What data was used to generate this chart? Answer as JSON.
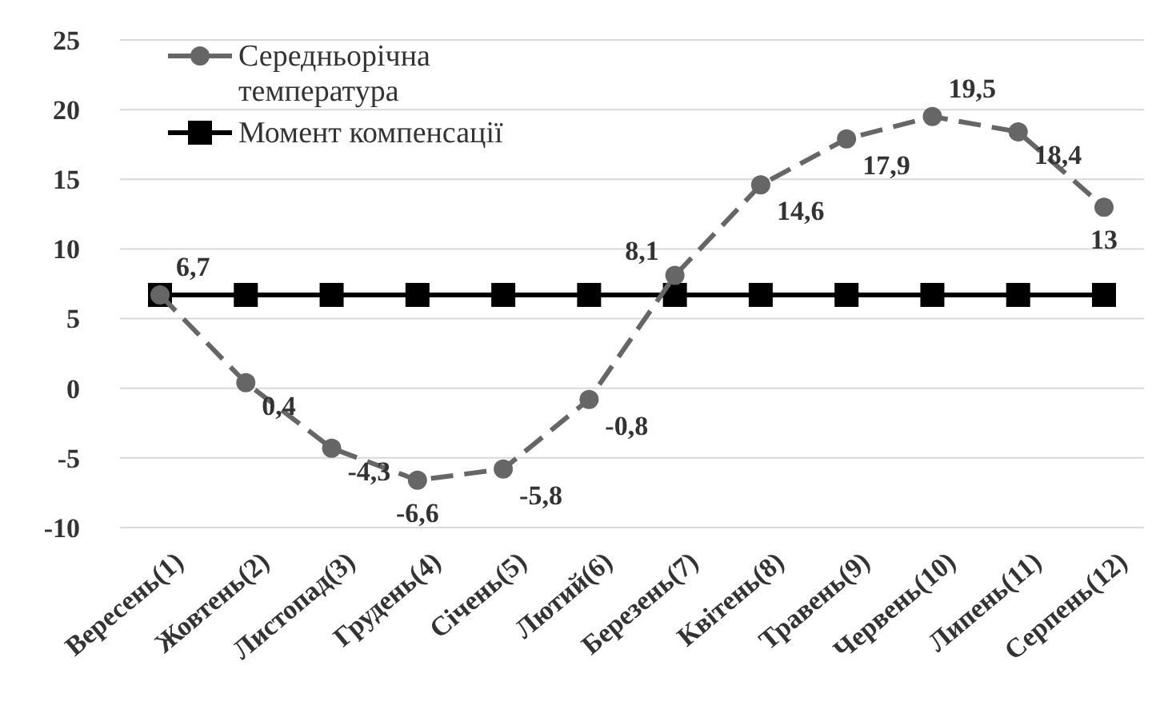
{
  "chart_data": {
    "type": "line",
    "categories": [
      "Вересень(1)",
      "Жовтень(2)",
      "Листопад(3)",
      "Грудень(4)",
      "Січень(5)",
      "Лютий(6)",
      "Березень(7)",
      "Квітень(8)",
      "Травень(9)",
      "Червень(10)",
      "Липень(11)",
      "Серпень(12)"
    ],
    "series": [
      {
        "name": "Середньорічна температура",
        "color": "#666666",
        "marker": "circle",
        "line_style": "dashed",
        "values": [
          6.7,
          0.4,
          -4.3,
          -6.6,
          -5.8,
          -0.8,
          8.1,
          14.6,
          17.9,
          19.5,
          18.4,
          13
        ],
        "value_labels": [
          "6,7",
          "0,4",
          "-4,3",
          "-6,6",
          "-5,8",
          "-0,8",
          "8,1",
          "14,6",
          "17,9",
          "19,5",
          "18,4",
          "13"
        ]
      },
      {
        "name": "Момент компенсації",
        "color": "#000000",
        "marker": "square",
        "line_style": "solid",
        "values": [
          6.7,
          6.7,
          6.7,
          6.7,
          6.7,
          6.7,
          6.7,
          6.7,
          6.7,
          6.7,
          6.7,
          6.7
        ]
      }
    ],
    "ylim": [
      -10,
      25
    ],
    "yticks": [
      -10,
      -5,
      0,
      5,
      10,
      15,
      20,
      25
    ],
    "grid": "y",
    "legend": "top left"
  }
}
